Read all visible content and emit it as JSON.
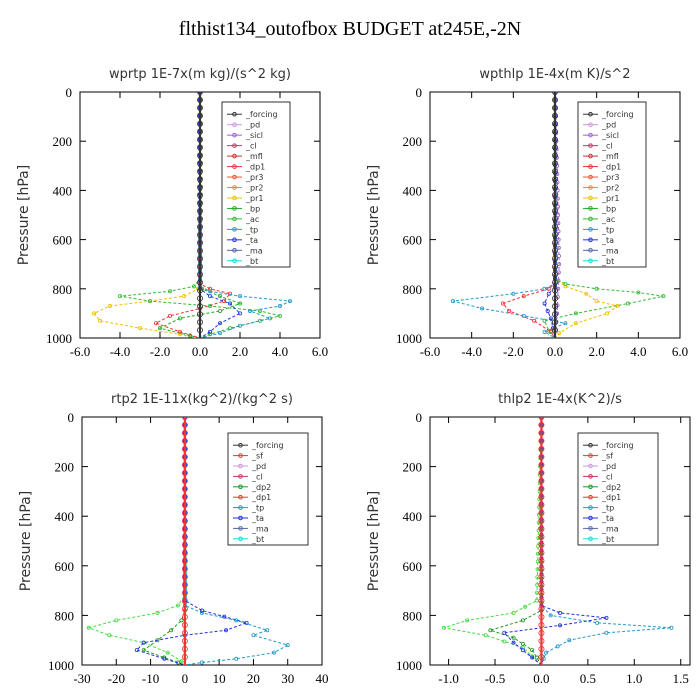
{
  "title": "flthist134_outofbox  BUDGET at245E,-2N",
  "chart_data": [
    {
      "type": "line",
      "title": "wprtp  1E-7x(m kg)/(s^2 kg)",
      "ylabel": "Pressure [hPa]",
      "xlim": [
        -6,
        6
      ],
      "ylim": [
        1000,
        0
      ],
      "xticks": [
        "-6.0",
        "-4.0",
        "-2.0",
        "0.0",
        "2.0",
        "4.0",
        "6.0"
      ],
      "yticks": [
        "0",
        "200",
        "400",
        "600",
        "800",
        "1000"
      ],
      "legend": [
        "_forcing",
        "_pd",
        "_sicl",
        "_cl",
        "_mfl",
        "_dp1",
        "_pr3",
        "_pr2",
        "_pr1",
        "_bp",
        "_ac",
        "_tp",
        "_ta",
        "_ma",
        "_bt"
      ],
      "series": [
        {
          "name": "_pr1",
          "color": "#f0c000",
          "x": [
            0,
            0,
            -0.1,
            -0.8,
            -2.5,
            -4.5,
            -5.3,
            -5.0,
            -3.0,
            -1.0,
            -0.2
          ],
          "y": [
            0,
            760,
            800,
            830,
            850,
            870,
            900,
            930,
            960,
            985,
            1000
          ]
        },
        {
          "name": "_ac",
          "color": "#33bb33",
          "x": [
            0,
            0,
            -0.3,
            -1.5,
            -4.0,
            -2.5,
            0.5,
            3.0,
            4.0,
            3.0,
            1.5,
            0.5,
            0
          ],
          "y": [
            0,
            760,
            790,
            810,
            830,
            850,
            870,
            890,
            910,
            930,
            960,
            985,
            1000
          ]
        },
        {
          "name": "_bp",
          "color": "#22aa22",
          "x": [
            0,
            0,
            0.1,
            1.0,
            2.0,
            1.0,
            -1.0,
            -2.0,
            -0.5,
            0
          ],
          "y": [
            0,
            780,
            800,
            830,
            860,
            890,
            920,
            960,
            990,
            1000
          ]
        },
        {
          "name": "_dp1",
          "color": "#ee3333",
          "x": [
            0,
            0,
            0.5,
            1.5,
            1.2,
            0,
            -1.5,
            -2.2,
            -1.0,
            0
          ],
          "y": [
            0,
            780,
            800,
            820,
            850,
            880,
            910,
            940,
            975,
            1000
          ]
        },
        {
          "name": "_tp",
          "color": "#2299cc",
          "x": [
            0,
            0,
            0.5,
            2.0,
            4.5,
            4.0,
            2.5,
            3.5,
            2.0,
            1.0,
            0
          ],
          "y": [
            0,
            790,
            810,
            830,
            850,
            870,
            890,
            920,
            950,
            980,
            1000
          ]
        },
        {
          "name": "_ta",
          "color": "#2233dd",
          "x": [
            0,
            0,
            0.5,
            1.5,
            2.0,
            1.0,
            0.5,
            0
          ],
          "y": [
            0,
            800,
            830,
            860,
            900,
            940,
            975,
            1000
          ]
        },
        {
          "name": "_forcing",
          "color": "#333333",
          "x": [
            0,
            0
          ],
          "y": [
            0,
            1000
          ]
        }
      ]
    },
    {
      "type": "line",
      "title": "wpthlp  1E-4x(m K)/s^2",
      "ylabel": "Pressure [hPa]",
      "xlim": [
        -6,
        6
      ],
      "ylim": [
        1000,
        0
      ],
      "xticks": [
        "-6.0",
        "-4.0",
        "-2.0",
        "0.0",
        "2.0",
        "4.0",
        "6.0"
      ],
      "yticks": [
        "0",
        "200",
        "400",
        "600",
        "800",
        "1000"
      ],
      "legend": [
        "_forcing",
        "_pd",
        "_sicl",
        "_cl",
        "_mfl",
        "_dp1",
        "_pr3",
        "_pr2",
        "_pr1",
        "_bp",
        "_ac",
        "_tp",
        "_ta",
        "_ma",
        "_bt"
      ],
      "series": [
        {
          "name": "_pr1",
          "color": "#f0c000",
          "x": [
            0,
            0,
            0.5,
            1.5,
            2.0,
            3.0,
            2.5,
            1.0,
            0.2,
            0
          ],
          "y": [
            0,
            760,
            790,
            820,
            850,
            870,
            900,
            940,
            980,
            1000
          ]
        },
        {
          "name": "_ac",
          "color": "#33bb33",
          "x": [
            0,
            0,
            0.5,
            2.0,
            4.0,
            5.2,
            3.5,
            1.0,
            -0.5,
            -0.3,
            0
          ],
          "y": [
            0,
            760,
            780,
            800,
            815,
            830,
            860,
            900,
            930,
            970,
            1000
          ]
        },
        {
          "name": "_dp1",
          "color": "#ee3333",
          "x": [
            0,
            0,
            -0.3,
            -1.5,
            -2.5,
            -2.2,
            -1.0,
            -0.2,
            0
          ],
          "y": [
            0,
            780,
            800,
            830,
            860,
            890,
            930,
            975,
            1000
          ]
        },
        {
          "name": "_tp",
          "color": "#2299cc",
          "x": [
            0,
            0,
            -0.5,
            -2.0,
            -4.9,
            -3.5,
            -1.5,
            0.5,
            -0.5,
            0
          ],
          "y": [
            0,
            780,
            800,
            820,
            850,
            880,
            910,
            940,
            975,
            1000
          ]
        },
        {
          "name": "_ta",
          "color": "#2233dd",
          "x": [
            0,
            0,
            -0.3,
            -0.5,
            -0.2,
            0
          ],
          "y": [
            0,
            790,
            820,
            860,
            920,
            1000
          ]
        },
        {
          "name": "_sicl",
          "color": "#9966cc",
          "x": [
            0,
            0.1,
            0.2,
            0.1,
            0
          ],
          "y": [
            0,
            300,
            700,
            900,
            1000
          ]
        },
        {
          "name": "_forcing",
          "color": "#333333",
          "x": [
            0,
            0
          ],
          "y": [
            0,
            1000
          ]
        }
      ]
    },
    {
      "type": "line",
      "title": "rtp2  1E-11x(kg^2)/(kg^2 s)",
      "ylabel": "Pressure [hPa]",
      "xlim": [
        -30,
        40
      ],
      "ylim": [
        1000,
        0
      ],
      "xticks": [
        "-30",
        "-20",
        "-10",
        "0",
        "10",
        "20",
        "30",
        "40"
      ],
      "yticks": [
        "0",
        "200",
        "400",
        "600",
        "800",
        "1000"
      ],
      "legend": [
        "_forcing",
        "_sf",
        "_pd",
        "_cl",
        "_dp2",
        "_dp1",
        "_tp",
        "_ta",
        "_ma",
        "_bt"
      ],
      "series": [
        {
          "name": "_dp1",
          "color": "#44dd44",
          "x": [
            0,
            0,
            -2,
            -8,
            -20,
            -28,
            -22,
            -12,
            -5,
            -1,
            0
          ],
          "y": [
            0,
            720,
            760,
            790,
            820,
            850,
            880,
            910,
            950,
            985,
            1000
          ]
        },
        {
          "name": "_dp2",
          "color": "#229922",
          "x": [
            0,
            0,
            -1,
            -4,
            -8,
            -12,
            -6,
            -2,
            0
          ],
          "y": [
            0,
            780,
            820,
            860,
            900,
            940,
            970,
            990,
            1000
          ]
        },
        {
          "name": "_tp",
          "color": "#2299cc",
          "x": [
            0,
            0,
            5,
            15,
            24,
            20,
            30,
            26,
            15,
            5,
            0
          ],
          "y": [
            0,
            760,
            790,
            820,
            860,
            880,
            920,
            950,
            975,
            990,
            1000
          ]
        },
        {
          "name": "_ta",
          "color": "#2233dd",
          "x": [
            0,
            0,
            5,
            18,
            12,
            0,
            -12,
            -14,
            -6,
            0
          ],
          "y": [
            0,
            740,
            780,
            830,
            860,
            880,
            910,
            940,
            975,
            1000
          ]
        },
        {
          "name": "_forcing",
          "color": "#ee3333",
          "x": [
            0,
            0
          ],
          "y": [
            0,
            1000
          ]
        }
      ]
    },
    {
      "type": "line",
      "title": "thlp2  1E-4x(K^2)/s",
      "ylabel": "Pressure [hPa]",
      "xlim": [
        -1.2,
        1.6
      ],
      "ylim": [
        1000,
        0
      ],
      "xticks": [
        "-1.0",
        "-0.5",
        "0.0",
        "0.5",
        "1.0",
        "1.5"
      ],
      "yticks": [
        "0",
        "200",
        "400",
        "600",
        "800",
        "1000"
      ],
      "legend": [
        "_forcing",
        "_sf",
        "_pd",
        "_cl",
        "_dp2",
        "_dp1",
        "_tp",
        "_ta",
        "_ma",
        "_bt"
      ],
      "series": [
        {
          "name": "_dp1",
          "color": "#44dd44",
          "x": [
            0,
            -0.02,
            -0.05,
            -0.3,
            -0.8,
            -1.05,
            -0.6,
            -0.2,
            0
          ],
          "y": [
            0,
            300,
            740,
            790,
            820,
            850,
            880,
            930,
            1000
          ]
        },
        {
          "name": "_dp2",
          "color": "#229922",
          "x": [
            0,
            0,
            -0.2,
            -0.55,
            -0.3,
            -0.1,
            0
          ],
          "y": [
            0,
            780,
            820,
            860,
            890,
            940,
            1000
          ]
        },
        {
          "name": "_tp",
          "color": "#2299cc",
          "x": [
            0,
            0,
            0.1,
            0.6,
            1.4,
            0.7,
            0.3,
            0.05,
            0
          ],
          "y": [
            0,
            760,
            800,
            830,
            850,
            870,
            900,
            950,
            1000
          ]
        },
        {
          "name": "_ta",
          "color": "#2233dd",
          "x": [
            0,
            0,
            0.2,
            0.7,
            0.2,
            -0.4,
            -0.3,
            0
          ],
          "y": [
            0,
            760,
            790,
            810,
            840,
            870,
            910,
            1000
          ]
        },
        {
          "name": "_forcing",
          "color": "#ee3333",
          "x": [
            0,
            0
          ],
          "y": [
            0,
            1000
          ]
        }
      ]
    }
  ]
}
